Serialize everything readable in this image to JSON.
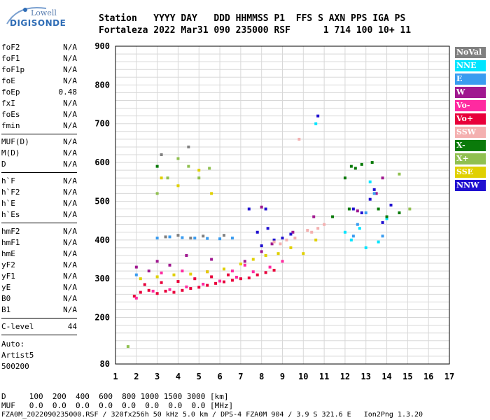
{
  "logo": {
    "line1": "Lowell",
    "line2": "DIGISONDE"
  },
  "header": {
    "line1": "Station   YYYY DAY   DDD HHMMSS P1  FFS S AXN PPS IGA PS",
    "line2": "Fortaleza 2022 Mar31 090 235000 RSF      1 714 100 10+ 11"
  },
  "params": {
    "group1": [
      {
        "name": "foF2",
        "value": "N/A"
      },
      {
        "name": "foF1",
        "value": "N/A"
      },
      {
        "name": "foF1p",
        "value": "N/A"
      },
      {
        "name": "foE",
        "value": "N/A"
      },
      {
        "name": "foEp",
        "value": "0.48"
      },
      {
        "name": "fxI",
        "value": "N/A"
      },
      {
        "name": "foEs",
        "value": "N/A"
      },
      {
        "name": "fmin",
        "value": "N/A"
      }
    ],
    "group2": [
      {
        "name": "MUF(D)",
        "value": "N/A"
      },
      {
        "name": "M(D)",
        "value": "N/A"
      },
      {
        "name": "D",
        "value": "N/A"
      }
    ],
    "group3": [
      {
        "name": "h`F",
        "value": "N/A"
      },
      {
        "name": "h`F2",
        "value": "N/A"
      },
      {
        "name": "h`E",
        "value": "N/A"
      },
      {
        "name": "h`Es",
        "value": "N/A"
      }
    ],
    "group4": [
      {
        "name": "hmF2",
        "value": "N/A"
      },
      {
        "name": "hmF1",
        "value": "N/A"
      },
      {
        "name": "hmE",
        "value": "N/A"
      },
      {
        "name": "yF2",
        "value": "N/A"
      },
      {
        "name": "yF1",
        "value": "N/A"
      },
      {
        "name": "yE",
        "value": "N/A"
      },
      {
        "name": "B0",
        "value": "N/A"
      },
      {
        "name": "B1",
        "value": "N/A"
      }
    ],
    "clevel": {
      "name": "C-level",
      "value": "44"
    },
    "auto": [
      "Auto:",
      "Artist5",
      "500200"
    ]
  },
  "legend": [
    {
      "label": "NoVal",
      "color": "#808080"
    },
    {
      "label": "NNE",
      "color": "#00e5ff"
    },
    {
      "label": "E",
      "color": "#3a9cf0"
    },
    {
      "label": "W",
      "color": "#a01890"
    },
    {
      "label": "Vo-",
      "color": "#ff2aa0"
    },
    {
      "label": "Vo+",
      "color": "#e8003a"
    },
    {
      "label": "SSW",
      "color": "#f4b0b0"
    },
    {
      "label": "X-",
      "color": "#0a7a0a"
    },
    {
      "label": "X+",
      "color": "#90c050"
    },
    {
      "label": "SSE",
      "color": "#e0d000"
    },
    {
      "label": "NNW",
      "color": "#2010d0"
    }
  ],
  "chart_data": {
    "type": "scatter",
    "xlim": [
      1,
      17
    ],
    "ylim": [
      80,
      900
    ],
    "x_ticks": [
      "1",
      "2",
      "3",
      "4",
      "5",
      "6",
      "7",
      "8",
      "9",
      "10",
      "11",
      "12",
      "13",
      "14",
      "15",
      "16",
      "17"
    ],
    "y_ticks": [
      "80",
      "200",
      "300",
      "400",
      "500",
      "600",
      "700",
      "800",
      "900"
    ],
    "grid": true,
    "legend_placement": "right",
    "series": [
      {
        "name": "Vo+",
        "color": "#e8003a",
        "points": [
          [
            1.9,
            255
          ],
          [
            2.2,
            265
          ],
          [
            2.6,
            270
          ],
          [
            3.0,
            262
          ],
          [
            3.4,
            268
          ],
          [
            3.8,
            265
          ],
          [
            4.2,
            270
          ],
          [
            4.6,
            275
          ],
          [
            5.0,
            278
          ],
          [
            5.4,
            283
          ],
          [
            5.8,
            288
          ],
          [
            6.2,
            292
          ],
          [
            6.6,
            296
          ],
          [
            7.0,
            300
          ],
          [
            7.4,
            302
          ],
          [
            7.8,
            310
          ],
          [
            8.2,
            316
          ],
          [
            8.6,
            322
          ],
          [
            2.4,
            285
          ],
          [
            3.2,
            290
          ],
          [
            4.0,
            293
          ],
          [
            4.8,
            300
          ],
          [
            5.6,
            305
          ],
          [
            6.4,
            310
          ]
        ]
      },
      {
        "name": "Vo-",
        "color": "#ff2aa0",
        "points": [
          [
            2.0,
            250
          ],
          [
            2.8,
            268
          ],
          [
            3.6,
            272
          ],
          [
            4.4,
            279
          ],
          [
            5.2,
            286
          ],
          [
            6.0,
            294
          ],
          [
            6.8,
            304
          ],
          [
            7.6,
            318
          ],
          [
            8.4,
            330
          ],
          [
            9.0,
            345
          ],
          [
            3.2,
            315
          ],
          [
            4.2,
            320
          ],
          [
            5.4,
            318
          ],
          [
            6.6,
            320
          ],
          [
            7.2,
            335
          ]
        ]
      },
      {
        "name": "W",
        "color": "#a01890",
        "points": [
          [
            2.0,
            330
          ],
          [
            2.6,
            320
          ],
          [
            3.0,
            345
          ],
          [
            3.6,
            335
          ],
          [
            4.4,
            360
          ],
          [
            5.6,
            350
          ],
          [
            7.2,
            345
          ],
          [
            8.0,
            370
          ],
          [
            8.5,
            390
          ],
          [
            9.5,
            420
          ],
          [
            13.5,
            520
          ],
          [
            13.8,
            560
          ],
          [
            12.6,
            475
          ],
          [
            8.0,
            485
          ],
          [
            10.5,
            460
          ]
        ]
      },
      {
        "name": "E",
        "color": "#3a9cf0",
        "points": [
          [
            2.0,
            310
          ],
          [
            3.0,
            405
          ],
          [
            3.6,
            408
          ],
          [
            4.2,
            406
          ],
          [
            4.8,
            405
          ],
          [
            5.4,
            404
          ],
          [
            6.0,
            403
          ],
          [
            6.6,
            405
          ],
          [
            12.6,
            440
          ],
          [
            13.0,
            470
          ],
          [
            13.4,
            520
          ],
          [
            13.8,
            410
          ],
          [
            12.4,
            410
          ]
        ]
      },
      {
        "name": "NNE",
        "color": "#00e5ff",
        "points": [
          [
            12.3,
            400
          ],
          [
            12.7,
            430
          ],
          [
            13.0,
            380
          ],
          [
            13.6,
            395
          ],
          [
            14.0,
            455
          ],
          [
            13.2,
            550
          ],
          [
            10.6,
            700
          ],
          [
            12.0,
            420
          ]
        ]
      },
      {
        "name": "NNW",
        "color": "#2010d0",
        "points": [
          [
            7.8,
            420
          ],
          [
            8.0,
            385
          ],
          [
            8.3,
            430
          ],
          [
            8.6,
            400
          ],
          [
            9.0,
            405
          ],
          [
            9.4,
            415
          ],
          [
            12.4,
            480
          ],
          [
            12.8,
            470
          ],
          [
            13.2,
            505
          ],
          [
            13.4,
            530
          ],
          [
            13.8,
            445
          ],
          [
            14.2,
            490
          ],
          [
            7.4,
            480
          ],
          [
            8.2,
            480
          ],
          [
            10.7,
            720
          ]
        ]
      },
      {
        "name": "SSW",
        "color": "#f4b0b0",
        "points": [
          [
            8.6,
            395
          ],
          [
            8.9,
            390
          ],
          [
            9.2,
            400
          ],
          [
            9.6,
            405
          ],
          [
            10.2,
            425
          ],
          [
            10.4,
            420
          ],
          [
            10.7,
            430
          ],
          [
            11.0,
            440
          ],
          [
            9.8,
            660
          ]
        ]
      },
      {
        "name": "X-",
        "color": "#0a7a0a",
        "points": [
          [
            12.0,
            560
          ],
          [
            12.3,
            590
          ],
          [
            12.5,
            585
          ],
          [
            12.8,
            595
          ],
          [
            13.3,
            600
          ],
          [
            13.6,
            480
          ],
          [
            14.0,
            460
          ],
          [
            14.6,
            470
          ],
          [
            12.2,
            480
          ],
          [
            11.4,
            460
          ],
          [
            3.0,
            590
          ]
        ]
      },
      {
        "name": "X+",
        "color": "#90c050",
        "points": [
          [
            3.0,
            520
          ],
          [
            3.5,
            560
          ],
          [
            4.0,
            610
          ],
          [
            4.5,
            590
          ],
          [
            5.0,
            560
          ],
          [
            5.5,
            585
          ],
          [
            14.6,
            570
          ],
          [
            15.1,
            480
          ],
          [
            1.6,
            125
          ]
        ]
      },
      {
        "name": "SSE",
        "color": "#e0d000",
        "points": [
          [
            2.2,
            300
          ],
          [
            3.0,
            305
          ],
          [
            3.8,
            310
          ],
          [
            4.6,
            312
          ],
          [
            5.4,
            318
          ],
          [
            6.2,
            325
          ],
          [
            7.0,
            338
          ],
          [
            7.6,
            350
          ],
          [
            8.2,
            360
          ],
          [
            8.8,
            365
          ],
          [
            9.4,
            380
          ],
          [
            10.0,
            365
          ],
          [
            10.6,
            400
          ],
          [
            3.2,
            560
          ],
          [
            4.0,
            540
          ],
          [
            5.0,
            580
          ],
          [
            5.6,
            520
          ]
        ]
      },
      {
        "name": "NoVal",
        "color": "#808080",
        "points": [
          [
            3.4,
            408
          ],
          [
            4.0,
            412
          ],
          [
            4.6,
            405
          ],
          [
            5.2,
            410
          ],
          [
            6.2,
            412
          ],
          [
            3.2,
            620
          ],
          [
            4.5,
            640
          ]
        ]
      }
    ]
  },
  "footer": {
    "d_row": "D     100  200  400  600  800 1000 1500 3000 [km]",
    "muf_row": "MUF   0.0  0.0  0.0  0.0  0.0  0.0  0.0  0.0 [MHz]",
    "info": "FZA0M_2022090235000.RSF / 320fx256h 50 kHz 5.0 km / DPS-4 FZA0M 904 / 3.9 S 321.6 E   Ion2Png 1.3.20"
  }
}
